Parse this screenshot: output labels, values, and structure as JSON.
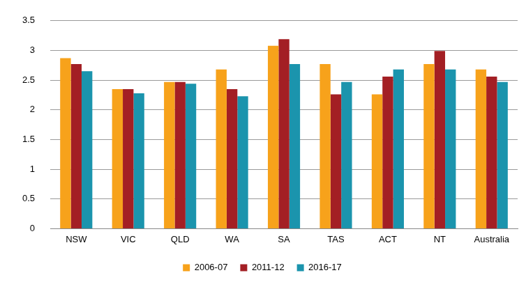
{
  "chart_data": {
    "type": "bar",
    "categories": [
      "NSW",
      "VIC",
      "QLD",
      "WA",
      "SA",
      "TAS",
      "ACT",
      "NT",
      "Australia"
    ],
    "series": [
      {
        "name": "2006-07",
        "color": "#f7a21b",
        "values": [
          2.87,
          2.35,
          2.47,
          2.68,
          3.08,
          2.77,
          2.26,
          2.77,
          2.68
        ]
      },
      {
        "name": "2011-12",
        "color": "#a31f24",
        "values": [
          2.77,
          2.35,
          2.47,
          2.35,
          3.19,
          2.26,
          2.56,
          2.99,
          2.56
        ]
      },
      {
        "name": "2016-17",
        "color": "#1b94ad",
        "values": [
          2.65,
          2.28,
          2.44,
          2.23,
          2.77,
          2.47,
          2.68,
          2.68,
          2.47
        ]
      }
    ],
    "ylim": [
      0,
      3.5
    ],
    "yticks": [
      0,
      0.5,
      1,
      1.5,
      2,
      2.5,
      3,
      3.5
    ],
    "grid": true,
    "legend": "bottom"
  }
}
